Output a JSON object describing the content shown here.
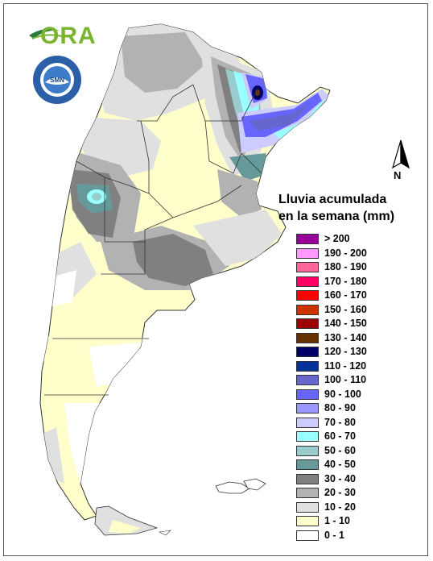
{
  "header": {
    "logo_text": "ORA",
    "seal_text": "SERVICIO METEOROLÓGICO NACIONAL · ARGENTINA",
    "seal_center": "SMN"
  },
  "compass": {
    "label": "N"
  },
  "legend": {
    "title_line1": "Lluvia acumulada",
    "title_line2": "en la semana (mm)",
    "items": [
      {
        "label": "> 200",
        "color": "#990099"
      },
      {
        "label": "190 - 200",
        "color": "#ff99ff"
      },
      {
        "label": "180 - 190",
        "color": "#ff6699"
      },
      {
        "label": "170 - 180",
        "color": "#ff0066"
      },
      {
        "label": "160 - 170",
        "color": "#ff0000"
      },
      {
        "label": "150 - 160",
        "color": "#cc3300"
      },
      {
        "label": "140 - 150",
        "color": "#990000"
      },
      {
        "label": "130 - 140",
        "color": "#663300"
      },
      {
        "label": "120 - 130",
        "color": "#000066"
      },
      {
        "label": "110 - 120",
        "color": "#003399"
      },
      {
        "label": "100 - 110",
        "color": "#6666cc"
      },
      {
        "label": "90 - 100",
        "color": "#6666ff"
      },
      {
        "label": "80 - 90",
        "color": "#9999ff"
      },
      {
        "label": "70 - 80",
        "color": "#ccccff"
      },
      {
        "label": "60 - 70",
        "color": "#99ffff"
      },
      {
        "label": "50 - 60",
        "color": "#99cccc"
      },
      {
        "label": "40 - 50",
        "color": "#669999"
      },
      {
        "label": "30 - 40",
        "color": "#808080"
      },
      {
        "label": "20 - 30",
        "color": "#b2b2b2"
      },
      {
        "label": "10 - 20",
        "color": "#e0e0e0"
      },
      {
        "label": "1 - 10",
        "color": "#ffffcc"
      },
      {
        "label": "0 - 1",
        "color": "#ffffff"
      }
    ]
  },
  "map": {
    "country": "Argentina",
    "colors": {
      "dry": "#ffffcc",
      "light": "#e0e0e0",
      "mid": "#b2b2b2",
      "dark": "#808080",
      "teal": "#669999",
      "aqua": "#99ffff",
      "lav": "#ccccff",
      "blue": "#6666ff",
      "navy": "#000066",
      "brown": "#663300",
      "border": "#333333"
    }
  }
}
